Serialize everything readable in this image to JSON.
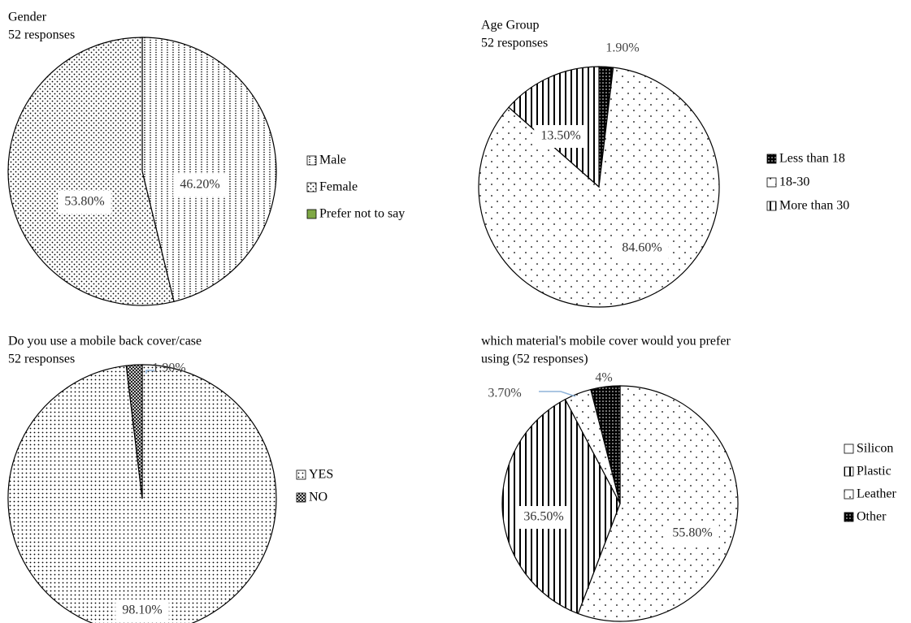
{
  "chart_data": [
    {
      "type": "pie",
      "title": "Gender",
      "subtitle": "52 responses",
      "categories": [
        "Male",
        "Female",
        "Prefer not to say"
      ],
      "values": [
        46.2,
        53.8,
        0
      ],
      "data_labels": [
        "46.20%",
        "53.80%",
        ""
      ],
      "legend": "right",
      "colors": [
        "#ffffff",
        "#ffffff",
        "#7fa845"
      ]
    },
    {
      "type": "pie",
      "title": "Age Group",
      "subtitle": "52 responses",
      "categories": [
        "Less than 18",
        "18-30",
        "More than 30"
      ],
      "values": [
        1.9,
        84.6,
        13.5
      ],
      "data_labels": [
        "1.90%",
        "84.60%",
        "13.50%"
      ],
      "legend": "right",
      "colors": [
        "#000000",
        "#ffffff",
        "#ffffff"
      ]
    },
    {
      "type": "pie",
      "title": "Do you use a mobile back cover/case",
      "subtitle": "52 responses",
      "categories": [
        "YES",
        "NO"
      ],
      "values": [
        98.1,
        1.9
      ],
      "data_labels": [
        "98.10%",
        "1.90%"
      ],
      "legend": "right",
      "colors": [
        "#ffffff",
        "#888888"
      ]
    },
    {
      "type": "pie",
      "title": "which material's mobile cover would you prefer",
      "subtitle": "using (52 responses)",
      "categories": [
        "Silicon",
        "Plastic",
        "Leather",
        "Other"
      ],
      "values": [
        55.8,
        36.5,
        3.7,
        4
      ],
      "data_labels": [
        "55.80%",
        "36.50%",
        "3.70%",
        "4%"
      ],
      "legend": "right",
      "colors": [
        "#ffffff",
        "#ffffff",
        "#ffffff",
        "#000000"
      ]
    }
  ]
}
